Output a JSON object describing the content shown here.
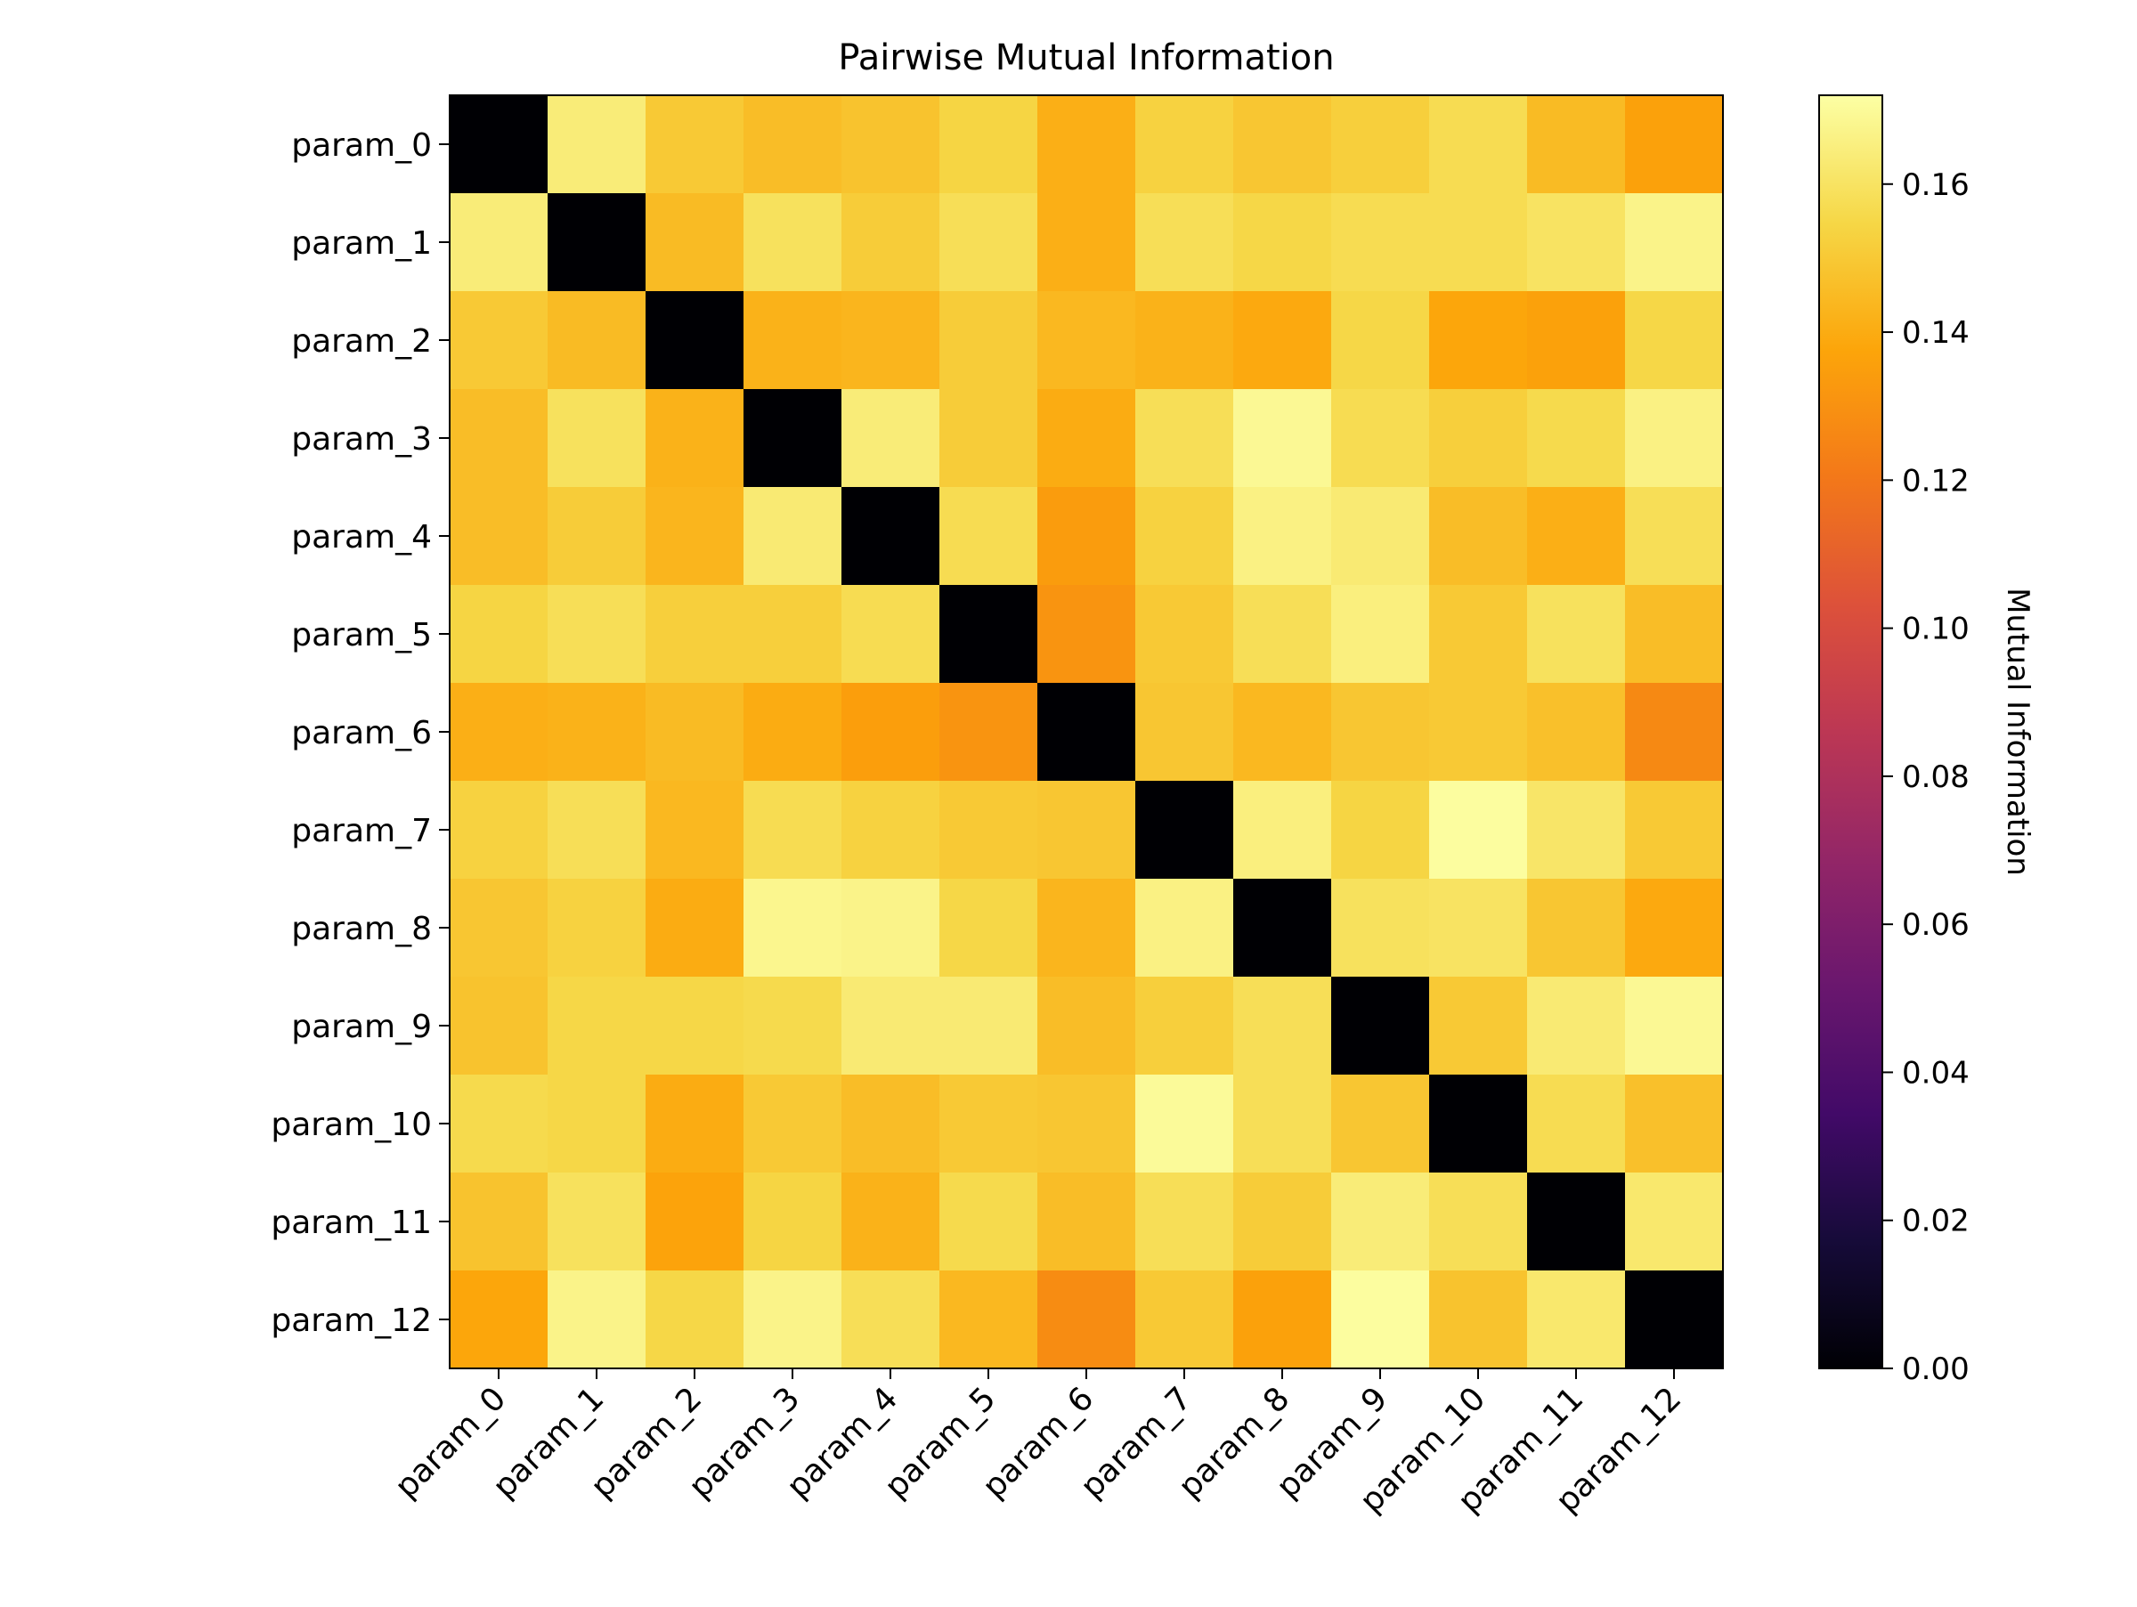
{
  "chart_data": {
    "type": "heatmap",
    "title": "Pairwise Mutual Information",
    "xlabel": "",
    "ylabel": "",
    "categories": [
      "param_0",
      "param_1",
      "param_2",
      "param_3",
      "param_4",
      "param_5",
      "param_6",
      "param_7",
      "param_8",
      "param_9",
      "param_10",
      "param_11",
      "param_12"
    ],
    "colormap": "inferno",
    "colorbar": {
      "label": "Mutual Information",
      "range": [
        0.0,
        0.172
      ],
      "ticks": [
        "0.00",
        "0.02",
        "0.04",
        "0.06",
        "0.08",
        "0.10",
        "0.12",
        "0.14",
        "0.16"
      ]
    },
    "matrix": [
      [
        0.0,
        0.164,
        0.15,
        0.146,
        0.148,
        0.154,
        0.141,
        0.153,
        0.149,
        0.152,
        0.157,
        0.145,
        0.136
      ],
      [
        0.164,
        0.0,
        0.145,
        0.159,
        0.151,
        0.158,
        0.141,
        0.158,
        0.155,
        0.157,
        0.157,
        0.16,
        0.167
      ],
      [
        0.15,
        0.145,
        0.0,
        0.142,
        0.143,
        0.151,
        0.144,
        0.142,
        0.139,
        0.155,
        0.138,
        0.136,
        0.155
      ],
      [
        0.146,
        0.159,
        0.142,
        0.0,
        0.164,
        0.151,
        0.14,
        0.158,
        0.169,
        0.157,
        0.152,
        0.156,
        0.166
      ],
      [
        0.146,
        0.151,
        0.143,
        0.163,
        0.0,
        0.157,
        0.134,
        0.153,
        0.166,
        0.163,
        0.146,
        0.141,
        0.158
      ],
      [
        0.154,
        0.158,
        0.152,
        0.152,
        0.157,
        0.0,
        0.131,
        0.15,
        0.158,
        0.165,
        0.15,
        0.159,
        0.146
      ],
      [
        0.141,
        0.142,
        0.145,
        0.14,
        0.135,
        0.131,
        0.0,
        0.149,
        0.144,
        0.149,
        0.15,
        0.147,
        0.127
      ],
      [
        0.153,
        0.158,
        0.144,
        0.157,
        0.153,
        0.15,
        0.149,
        0.0,
        0.165,
        0.154,
        0.171,
        0.161,
        0.15
      ],
      [
        0.149,
        0.153,
        0.14,
        0.168,
        0.167,
        0.155,
        0.143,
        0.166,
        0.0,
        0.159,
        0.16,
        0.149,
        0.139
      ],
      [
        0.148,
        0.155,
        0.155,
        0.156,
        0.163,
        0.163,
        0.146,
        0.152,
        0.158,
        0.0,
        0.15,
        0.163,
        0.169
      ],
      [
        0.156,
        0.155,
        0.14,
        0.15,
        0.146,
        0.15,
        0.149,
        0.17,
        0.158,
        0.149,
        0.0,
        0.157,
        0.147
      ],
      [
        0.148,
        0.159,
        0.137,
        0.154,
        0.142,
        0.156,
        0.146,
        0.158,
        0.151,
        0.164,
        0.158,
        0.0,
        0.162
      ],
      [
        0.138,
        0.167,
        0.155,
        0.167,
        0.158,
        0.144,
        0.128,
        0.15,
        0.136,
        0.171,
        0.148,
        0.162,
        0.0
      ]
    ]
  }
}
